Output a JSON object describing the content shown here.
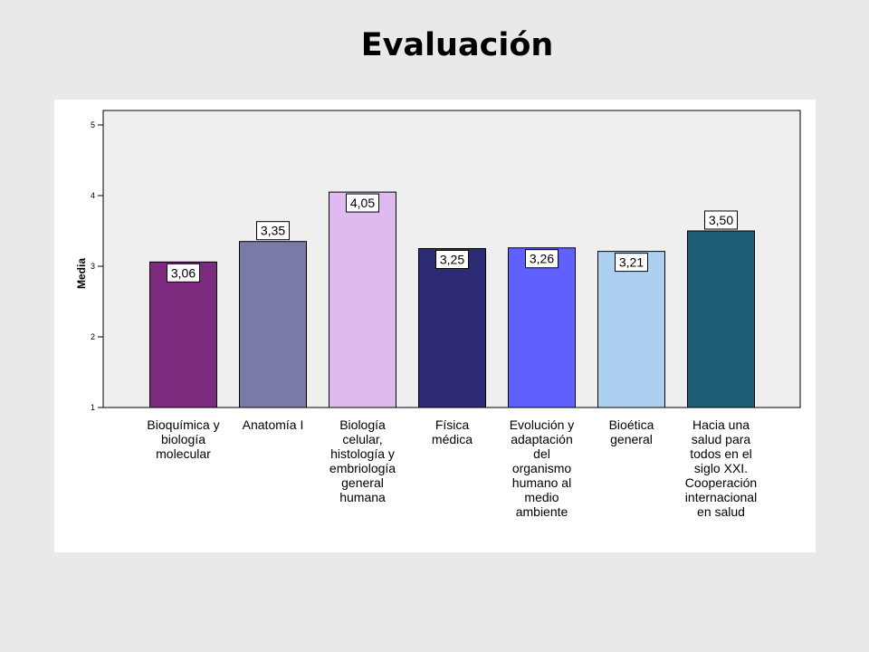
{
  "page": {
    "title": "Evaluación"
  },
  "chart_data": {
    "type": "bar",
    "title": "Evaluación",
    "xlabel": "",
    "ylabel": "Media",
    "ylim": [
      1,
      5
    ],
    "yticks": [
      "1",
      "2",
      "3",
      "4",
      "5"
    ],
    "grid": false,
    "categories": [
      [
        "Bioquímica y",
        "biología",
        "molecular"
      ],
      [
        "Anatomía I"
      ],
      [
        "Biología",
        "celular,",
        "histología y",
        "embriología",
        "general",
        "humana"
      ],
      [
        "Física",
        "médica"
      ],
      [
        "Evolución y",
        "adaptación",
        "del",
        "organismo",
        "humano al",
        "medio",
        "ambiente"
      ],
      [
        "Bioética",
        "general"
      ],
      [
        "Hacia una",
        "salud para",
        "todos en el",
        "siglo XXI.",
        "Cooperación",
        "internacional",
        "en salud"
      ]
    ],
    "values": [
      3.06,
      3.35,
      4.05,
      3.25,
      3.26,
      3.21,
      3.5
    ],
    "value_labels": [
      "3,06",
      "3,35",
      "4,05",
      "3,25",
      "3,26",
      "3,21",
      "3,50"
    ],
    "colors": [
      "#7b2a7e",
      "#7a7aa7",
      "#dfbaf0",
      "#2b2a72",
      "#6060fc",
      "#acd0ef",
      "#1e5f76"
    ],
    "plot_background": "#efefef"
  }
}
